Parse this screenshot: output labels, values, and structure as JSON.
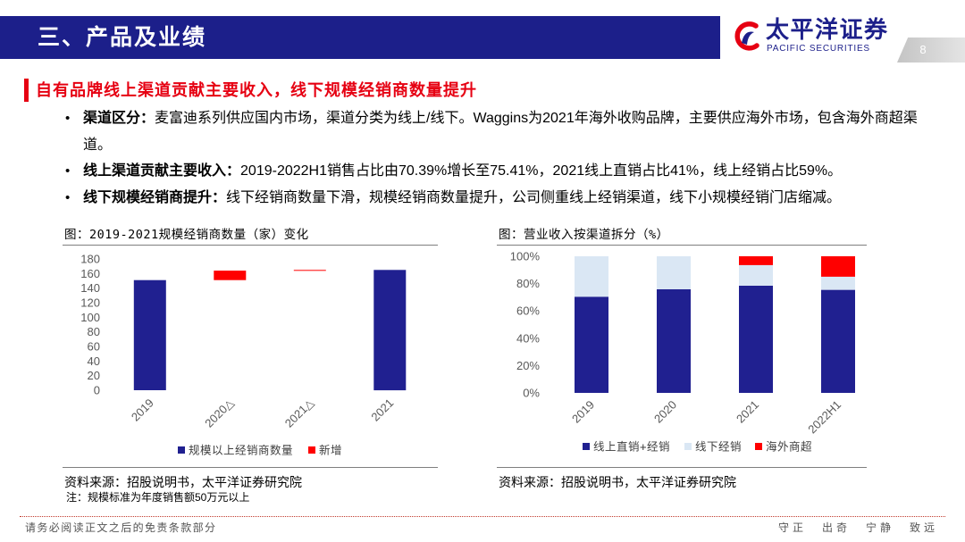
{
  "header": {
    "section_title": "三、产品及业绩",
    "brand_name": "太平洋证券",
    "brand_subtitle": "PACIFIC SECURITIES",
    "page_number": "8"
  },
  "slide_title": "自有品牌线上渠道贡献主要收入，线下规模经销商数量提升",
  "bullets": [
    {
      "label": "渠道区分：",
      "text": "麦富迪系列供应国内市场，渠道分类为线上/线下。Waggins为2021年海外收购品牌，主要供应海外市场，包含海外商超渠道。"
    },
    {
      "label": "线上渠道贡献主要收入：",
      "text": "2019-2022H1销售占比由70.39%增长至75.41%，2021线上直销占比41%，线上经销占比59%。"
    },
    {
      "label": "线下规模经销商提升：",
      "text": "线下经销商数量下滑，规模经销商数量提升，公司侧重线上经销渠道，线下小规模经销门店缩减。"
    }
  ],
  "chart_data": [
    {
      "type": "bar",
      "subtype": "waterfall",
      "title": "图：2019-2021规模经销商数量（家）变化",
      "categories": [
        "2019",
        "2020△",
        "2021△",
        "2021"
      ],
      "series": [
        {
          "name": "规模以上经销商数量",
          "color": "#202090",
          "values": [
            151,
            null,
            null,
            165
          ]
        },
        {
          "name": "新增",
          "color": "#ff0000",
          "values": [
            null,
            13,
            1,
            null
          ]
        }
      ],
      "ylim": [
        0,
        180
      ],
      "yticks": [
        0,
        20,
        40,
        60,
        80,
        100,
        120,
        140,
        160,
        180
      ],
      "grid": false,
      "legend": "bottom"
    },
    {
      "type": "bar",
      "subtype": "stacked-percent",
      "title": "图：营业收入按渠道拆分（%）",
      "categories": [
        "2019",
        "2020",
        "2021",
        "2022H1"
      ],
      "series": [
        {
          "name": "线上直销+经销",
          "color": "#202090",
          "values": [
            70.39,
            75.8,
            78.4,
            75.41
          ]
        },
        {
          "name": "线下经销",
          "color": "#dae7f4",
          "values": [
            29.61,
            24.2,
            15.1,
            9.6
          ]
        },
        {
          "name": "海外商超",
          "color": "#ff0000",
          "values": [
            0,
            0,
            6.5,
            14.99
          ]
        }
      ],
      "ylim": [
        0,
        100
      ],
      "yticks": [
        0,
        20,
        40,
        60,
        80,
        100
      ],
      "ytick_labels": [
        "0%",
        "20%",
        "40%",
        "60%",
        "80%",
        "100%"
      ],
      "grid": false,
      "legend": "bottom"
    }
  ],
  "sources": [
    {
      "source": "资料来源：招股说明书，太平洋证券研究院",
      "note": "注：规模标准为年度销售额50万元以上"
    },
    {
      "source": "资料来源：招股说明书，太平洋证券研究院"
    }
  ],
  "footer": {
    "disclaimer": "请务必阅读正文之后的免责条款部分",
    "motto": "守正 出奇 宁静 致远"
  },
  "colors": {
    "brand_navy": "#1c1f8a",
    "accent_red": "#e60012",
    "page_tab_grey": "#c4c4c4"
  }
}
